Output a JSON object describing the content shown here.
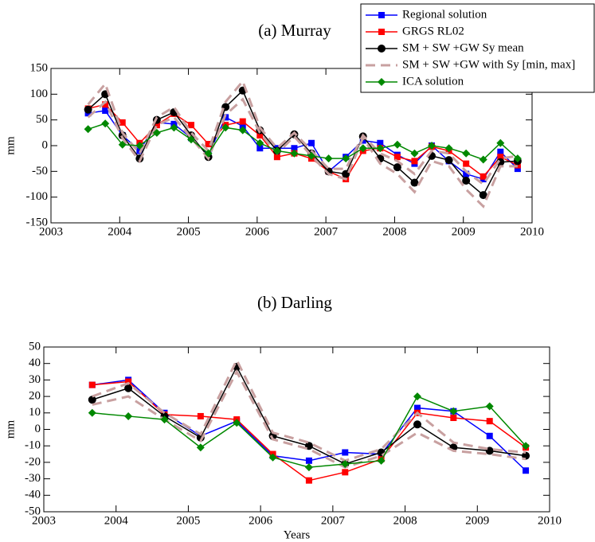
{
  "chart_data": [
    {
      "type": "line",
      "title": "(a) Murray",
      "y_label": "mm",
      "legend": "upper right",
      "x": [
        2003.54,
        2003.79,
        2004.04,
        2004.29,
        2004.54,
        2004.79,
        2005.04,
        2005.29,
        2005.54,
        2005.79,
        2006.04,
        2006.29,
        2006.54,
        2006.79,
        2007.04,
        2007.29,
        2007.54,
        2007.79,
        2008.04,
        2008.29,
        2008.54,
        2008.79,
        2009.04,
        2009.29,
        2009.54,
        2009.79
      ],
      "xlim": [
        2003,
        2010
      ],
      "xticks": [
        2003,
        2004,
        2005,
        2006,
        2007,
        2008,
        2009,
        2010
      ],
      "ylim": [
        -150,
        150
      ],
      "yticks": [
        -150,
        -100,
        -50,
        0,
        50,
        100,
        150
      ],
      "series": [
        {
          "name": "Regional  solution",
          "color": "#0000ff",
          "marker": "square",
          "values": [
            63,
            68,
            20,
            -10,
            45,
            42,
            15,
            -18,
            55,
            38,
            -5,
            -5,
            -5,
            5,
            -50,
            -22,
            10,
            5,
            -18,
            -35,
            0,
            -30,
            -55,
            -65,
            -12,
            -45
          ]
        },
        {
          "name": "GRGS RL02",
          "color": "#ff0000",
          "marker": "square",
          "values": [
            72,
            80,
            45,
            5,
            40,
            62,
            40,
            3,
            40,
            47,
            20,
            -22,
            -15,
            -25,
            -50,
            -65,
            -10,
            -5,
            -22,
            -30,
            -2,
            -10,
            -35,
            -60,
            -22,
            -38
          ]
        },
        {
          "name": "SM + SW +GW Sy mean",
          "color": "#000000",
          "marker": "circle",
          "values": [
            70,
            100,
            20,
            -25,
            50,
            65,
            20,
            -22,
            75,
            107,
            30,
            -10,
            22,
            -15,
            -50,
            -55,
            18,
            -25,
            -42,
            -72,
            -20,
            -28,
            -68,
            -96,
            -32,
            -30
          ]
        },
        {
          "name": "SM + SW +GW with Sy [min, max]",
          "color": "#c8a0a0",
          "marker": "dash",
          "upper": [
            80,
            120,
            25,
            -15,
            55,
            75,
            25,
            -10,
            85,
            125,
            35,
            -5,
            25,
            -10,
            -45,
            -45,
            20,
            -15,
            -30,
            -55,
            -10,
            -15,
            -50,
            -75,
            -25,
            -20
          ],
          "lower": [
            55,
            85,
            15,
            -30,
            40,
            55,
            15,
            -25,
            60,
            90,
            25,
            -15,
            18,
            -20,
            -55,
            -65,
            15,
            -35,
            -55,
            -90,
            -30,
            -40,
            -85,
            -118,
            -40,
            -40
          ]
        },
        {
          "name": "ICA solution",
          "color": "#008800",
          "marker": "diamond",
          "values": [
            32,
            43,
            2,
            0,
            25,
            35,
            12,
            -15,
            35,
            30,
            5,
            -10,
            -15,
            -20,
            -25,
            -25,
            -5,
            -5,
            2,
            -15,
            0,
            -5,
            -15,
            -27,
            5,
            -25
          ]
        }
      ]
    },
    {
      "type": "line",
      "title": "(b) Darling",
      "y_label": "mm",
      "x_label": "Years",
      "x": [
        2003.67,
        2004.17,
        2004.67,
        2005.17,
        2005.67,
        2006.17,
        2006.67,
        2007.17,
        2007.67,
        2008.17,
        2008.67,
        2009.17,
        2009.67
      ],
      "xlim": [
        2003,
        2010
      ],
      "xticks": [
        2003,
        2004,
        2005,
        2006,
        2007,
        2008,
        2009,
        2010
      ],
      "ylim": [
        -50,
        50
      ],
      "yticks": [
        -50,
        -40,
        -30,
        -20,
        -10,
        0,
        10,
        20,
        30,
        40,
        50
      ],
      "series": [
        {
          "color": "#0000ff",
          "marker": "square",
          "values": [
            27,
            30,
            10,
            -4,
            5,
            -16,
            -19,
            -14,
            -15,
            13,
            11,
            -4,
            -25
          ]
        },
        {
          "color": "#ff0000",
          "marker": "square",
          "values": [
            27,
            29,
            9,
            8,
            6,
            -15,
            -31,
            -26,
            -18,
            10,
            7,
            5,
            -11
          ]
        },
        {
          "color": "#000000",
          "marker": "circle",
          "values": [
            18,
            25,
            8,
            -5,
            38,
            -4,
            -10,
            -21,
            -14,
            3,
            -11,
            -13,
            -16
          ]
        },
        {
          "color": "#c8a0a0",
          "marker": "dash",
          "upper": [
            20,
            28,
            10,
            -3,
            42,
            -2,
            -8,
            -19,
            -12,
            10,
            -8,
            -12,
            -14
          ],
          "lower": [
            15,
            20,
            6,
            -7,
            35,
            -6,
            -12,
            -23,
            -16,
            -2,
            -13,
            -15,
            -18
          ]
        },
        {
          "color": "#008800",
          "marker": "diamond",
          "values": [
            10,
            8,
            6,
            -11,
            4,
            -17,
            -23,
            -21,
            -19,
            20,
            11,
            14,
            -10
          ]
        }
      ]
    }
  ]
}
